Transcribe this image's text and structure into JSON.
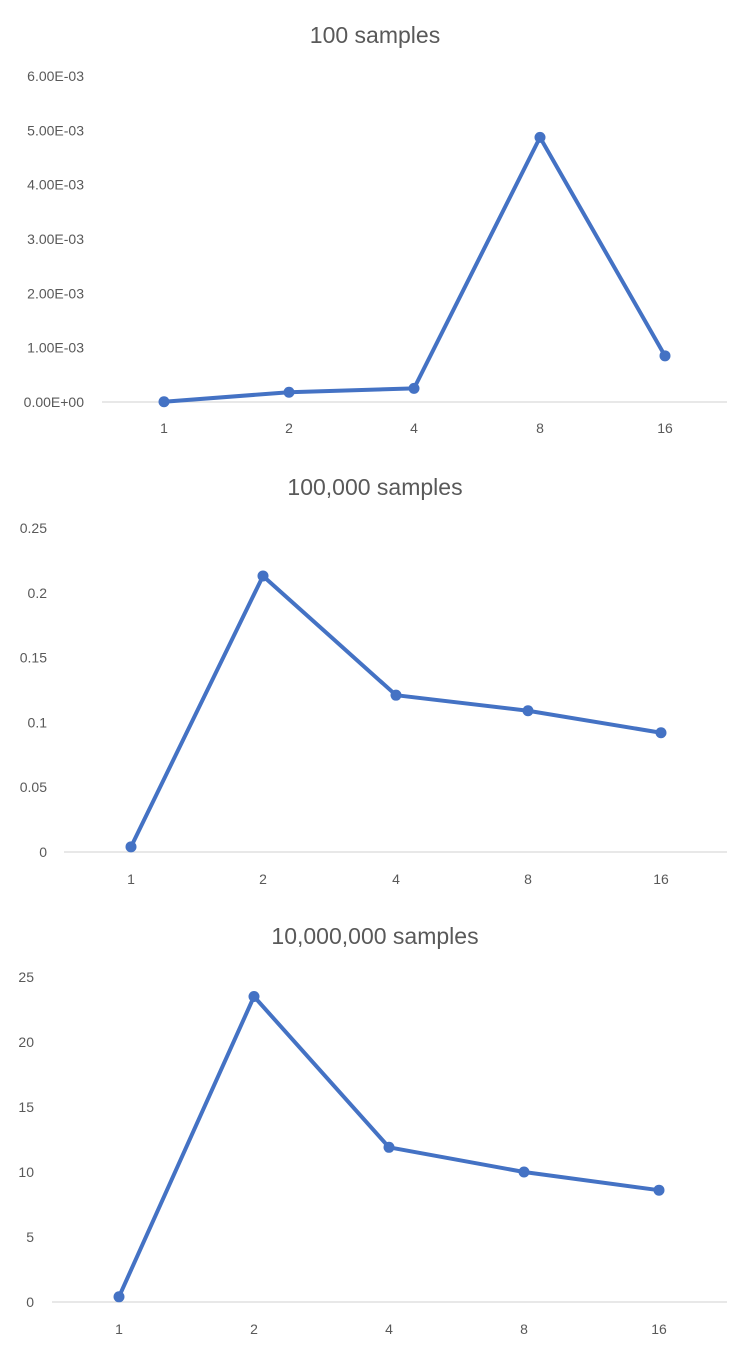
{
  "chart_data": [
    {
      "type": "line",
      "title": "100 samples",
      "categories": [
        "1",
        "2",
        "4",
        "8",
        "16"
      ],
      "values": [
        5e-06,
        0.00018,
        0.00025,
        0.00487,
        0.00085
      ],
      "ylim": [
        0,
        0.006
      ],
      "yticks": [
        "0.00E+00",
        "1.00E-03",
        "2.00E-03",
        "3.00E-03",
        "4.00E-03",
        "5.00E-03",
        "6.00E-03"
      ],
      "grid": false,
      "color": "#4472C4"
    },
    {
      "type": "line",
      "title": "100,000 samples",
      "categories": [
        "1",
        "2",
        "4",
        "8",
        "16"
      ],
      "values": [
        0.004,
        0.213,
        0.121,
        0.109,
        0.092
      ],
      "ylim": [
        0,
        0.25
      ],
      "yticks": [
        "0",
        "0.05",
        "0.1",
        "0.15",
        "0.2",
        "0.25"
      ],
      "grid": false,
      "color": "#4472C4"
    },
    {
      "type": "line",
      "title": "10,000,000 samples",
      "categories": [
        "1",
        "2",
        "4",
        "8",
        "16"
      ],
      "values": [
        0.4,
        23.5,
        11.9,
        10.0,
        8.6
      ],
      "ylim": [
        0,
        25
      ],
      "yticks": [
        "0",
        "5",
        "10",
        "15",
        "20",
        "25"
      ],
      "grid": false,
      "color": "#4472C4"
    }
  ]
}
